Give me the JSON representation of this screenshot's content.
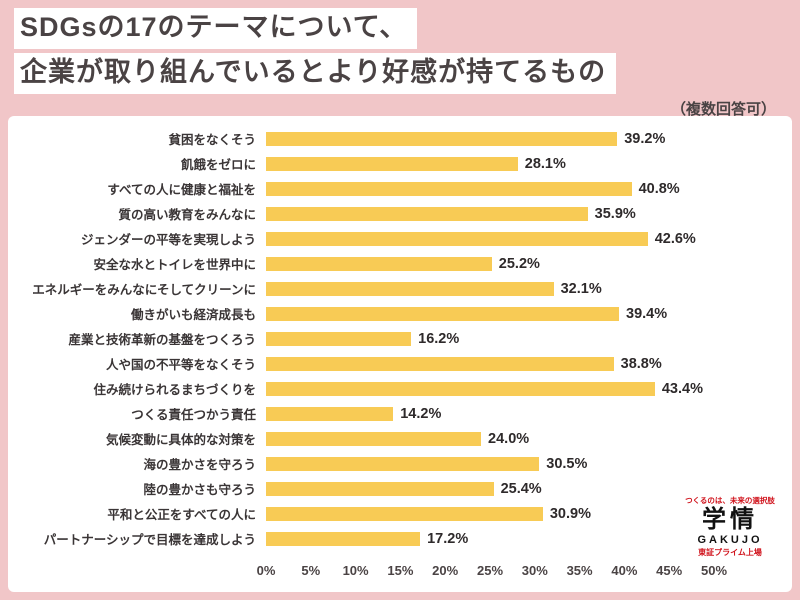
{
  "header": {
    "title_line1": "SDGsの17のテーマについて、",
    "title_line2": "企業が取り組んでいるとより好感が持てるもの",
    "note": "（複数回答可）"
  },
  "chart_data": {
    "type": "bar",
    "orientation": "horizontal",
    "title": "SDGsの17のテーマについて、企業が取り組んでいるとより好感が持てるもの（複数回答可）",
    "categories": [
      "貧困をなくそう",
      "飢餓をゼロに",
      "すべての人に健康と福祉を",
      "質の高い教育をみんなに",
      "ジェンダーの平等を実現しよう",
      "安全な水とトイレを世界中に",
      "エネルギーをみんなにそしてクリーンに",
      "働きがいも経済成長も",
      "産業と技術革新の基盤をつくろう",
      "人や国の不平等をなくそう",
      "住み続けられるまちづくりを",
      "つくる責任つかう責任",
      "気候変動に具体的な対策を",
      "海の豊かさを守ろう",
      "陸の豊かさも守ろう",
      "平和と公正をすべての人に",
      "パートナーシップで目標を達成しよう"
    ],
    "values": [
      39.2,
      28.1,
      40.8,
      35.9,
      42.6,
      25.2,
      32.1,
      39.4,
      16.2,
      38.8,
      43.4,
      14.2,
      24.0,
      30.5,
      25.4,
      30.9,
      17.2
    ],
    "value_labels": [
      "39.2%",
      "28.1%",
      "40.8%",
      "35.9%",
      "42.6%",
      "25.2%",
      "32.1%",
      "39.4%",
      "16.2%",
      "38.8%",
      "43.4%",
      "14.2%",
      "24.0%",
      "30.5%",
      "25.4%",
      "30.9%",
      "17.2%"
    ],
    "xlim": [
      0,
      50
    ],
    "x_ticks": [
      "0%",
      "5%",
      "10%",
      "15%",
      "20%",
      "25%",
      "30%",
      "35%",
      "40%",
      "45%",
      "50%"
    ],
    "grid": false,
    "bar_color": "#f8cb55"
  },
  "logo": {
    "tagline": "つくるのは、未来の選択肢",
    "name": "学情",
    "name_en": "GAKUJO",
    "subtext": "東証プライム上場"
  },
  "colors": {
    "background": "#f1c6c8",
    "panel": "#ffffff",
    "bar": "#f8cb55",
    "title_text": "#4a4344"
  }
}
